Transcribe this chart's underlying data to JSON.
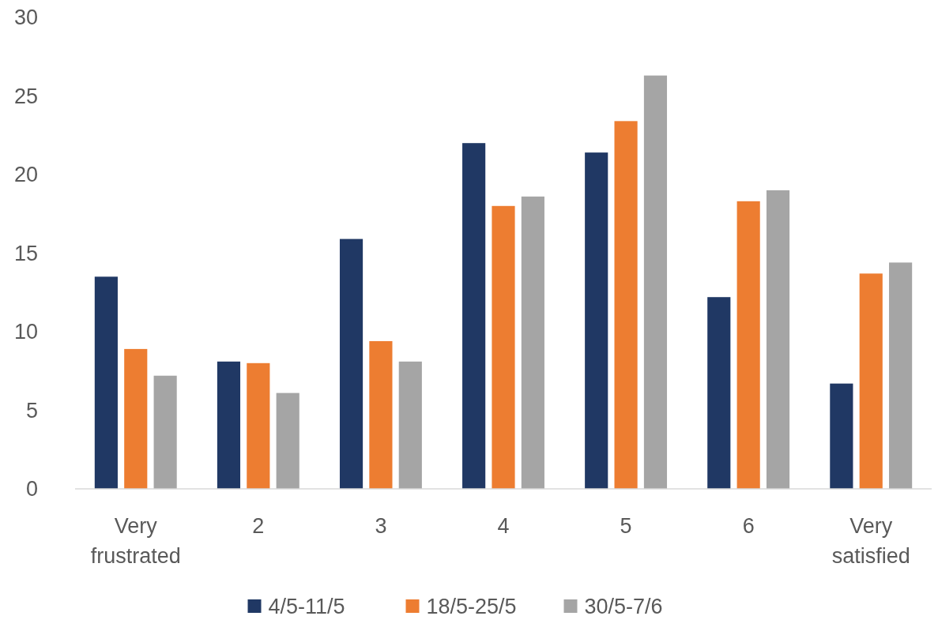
{
  "chart_data": {
    "type": "bar",
    "categories": [
      "Very frustrated",
      "2",
      "3",
      "4",
      "5",
      "6",
      "Very satisfied"
    ],
    "series": [
      {
        "name": "4/5-11/5",
        "color": "#203864",
        "values": [
          13.5,
          8.1,
          15.9,
          22.0,
          21.4,
          12.2,
          6.7
        ]
      },
      {
        "name": "18/5-25/5",
        "color": "#ed7d31",
        "values": [
          8.9,
          8.0,
          9.4,
          18.0,
          23.4,
          18.3,
          13.7
        ]
      },
      {
        "name": "30/5-7/6",
        "color": "#a5a5a5",
        "values": [
          7.2,
          6.1,
          8.1,
          18.6,
          26.3,
          19.0,
          14.4
        ]
      }
    ],
    "ylim": [
      0,
      30
    ],
    "yticks": [
      0,
      5,
      10,
      15,
      20,
      25,
      30
    ],
    "grid": false,
    "legend": "bottom"
  }
}
